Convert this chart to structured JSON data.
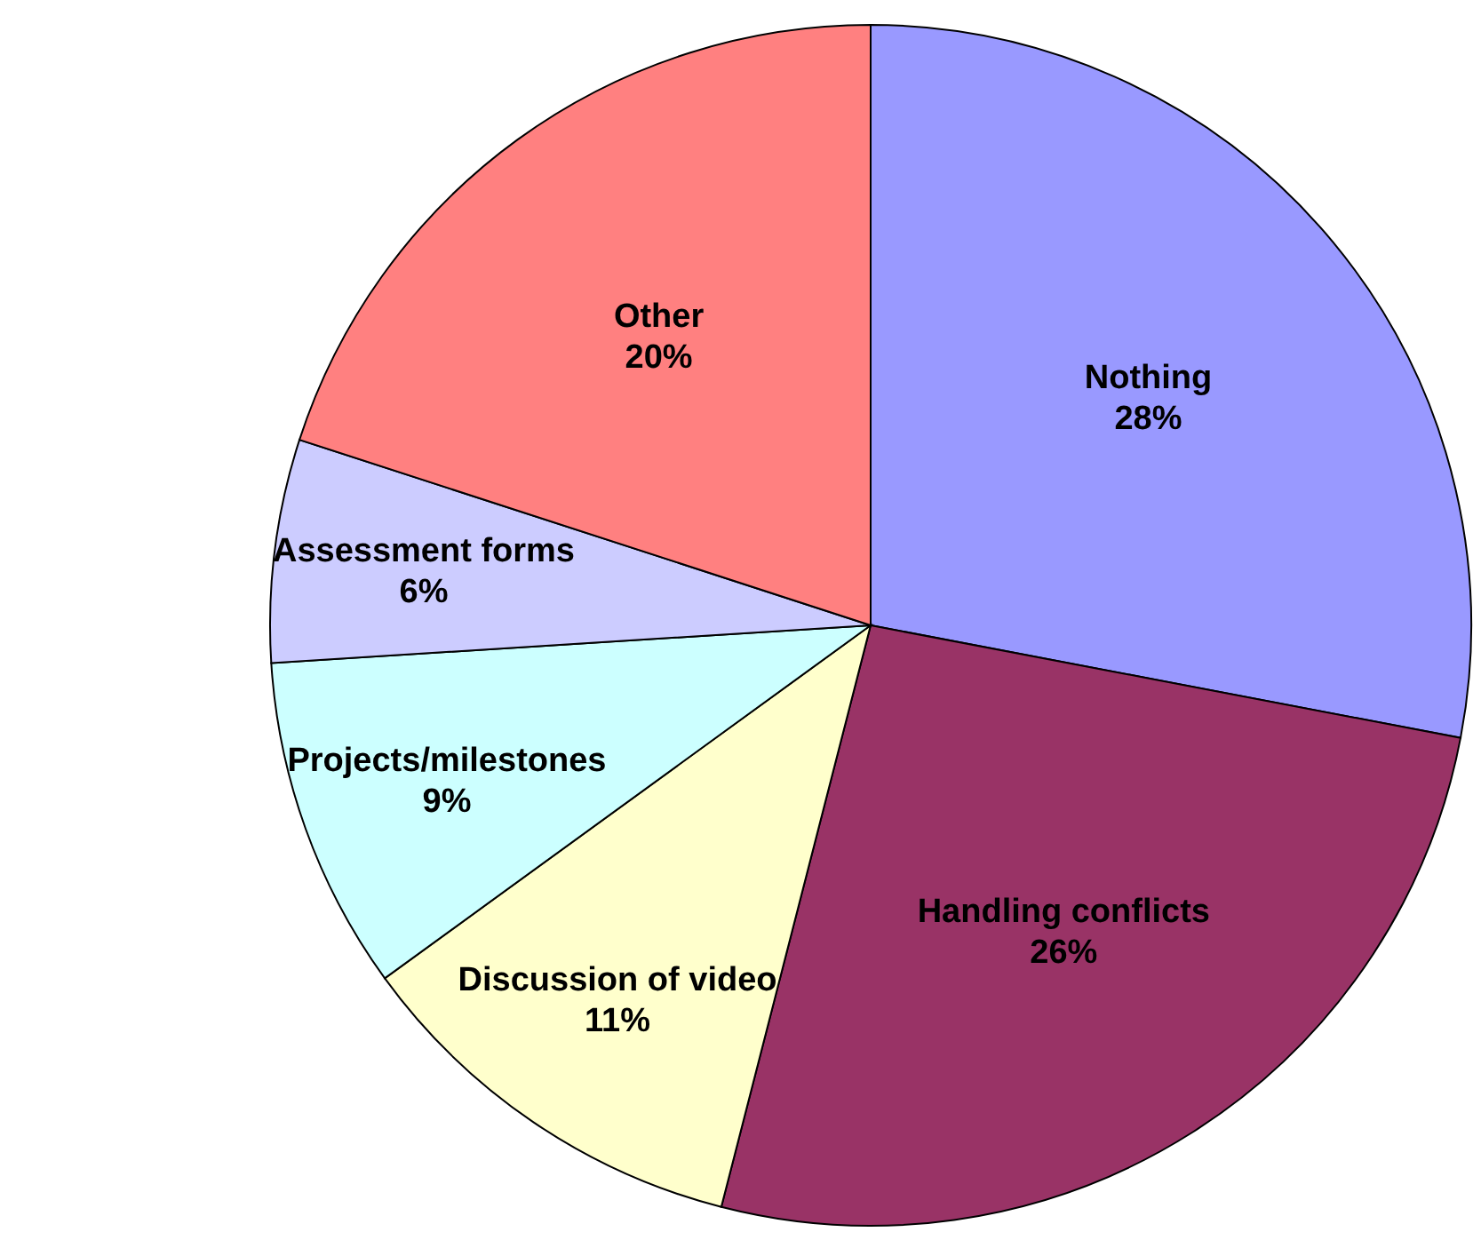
{
  "chart_data": {
    "type": "pie",
    "categories": [
      "Nothing",
      "Handling conflicts",
      "Discussion of video",
      "Projects/milestones",
      "Assessment forms",
      "Other"
    ],
    "values": [
      28,
      26,
      11,
      9,
      6,
      20
    ],
    "colors": [
      "#9999ff",
      "#993366",
      "#ffffcc",
      "#ccffff",
      "#ccccff",
      "#ff8080"
    ],
    "value_labels": [
      "28%",
      "26%",
      "11%",
      "9%",
      "6%",
      "20%"
    ],
    "legend": false
  }
}
